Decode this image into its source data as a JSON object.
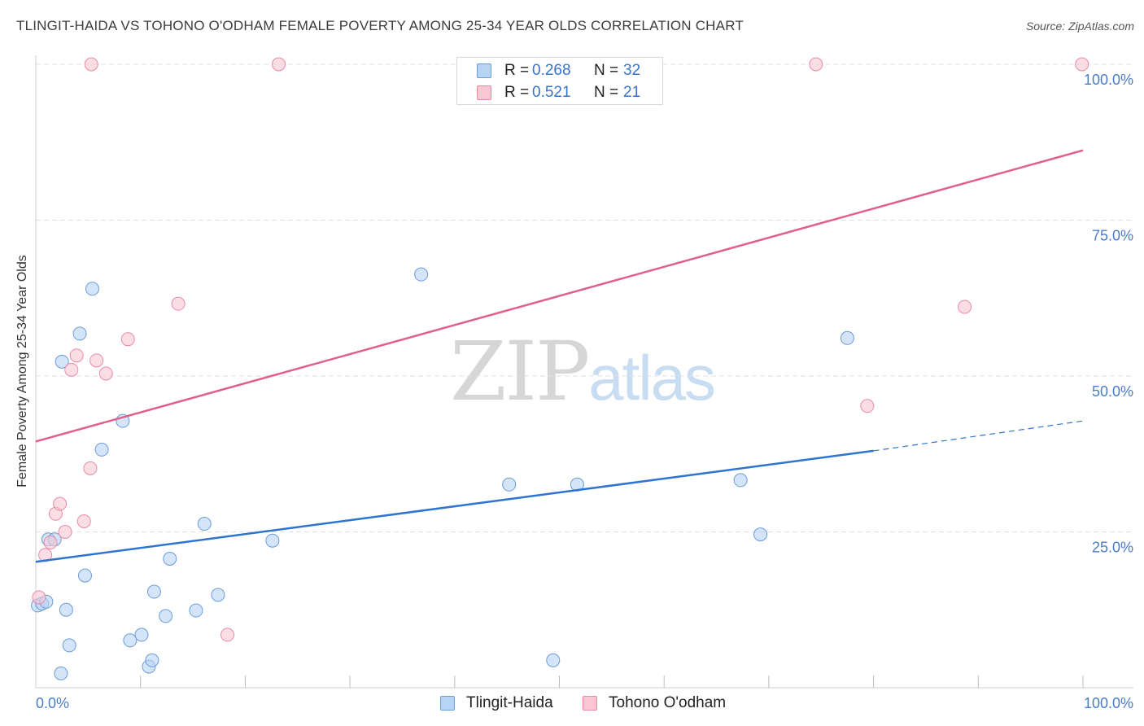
{
  "title": "TLINGIT-HAIDA VS TOHONO O'ODHAM FEMALE POVERTY AMONG 25-34 YEAR OLDS CORRELATION CHART",
  "source": "Source: ZipAtlas.com",
  "watermark": {
    "zip": "ZIP",
    "atlas": "atlas"
  },
  "legend": {
    "rows": [
      {
        "r_label": "R =",
        "r_value": "0.268",
        "n_label": "N =",
        "n_value": "32"
      },
      {
        "r_label": "R =",
        "r_value": "0.521",
        "n_label": "N =",
        "n_value": "21"
      }
    ]
  },
  "colors": {
    "blue_fill": "#b8d4f5",
    "blue_stroke": "#6b9bd8",
    "blue_line": "#2f74d0",
    "pink_fill": "#f9c6d4",
    "pink_stroke": "#e88aa6",
    "pink_line": "#e0608a",
    "axis_label": "#4a7cc9",
    "grid": "#e2e2e2"
  },
  "chart_data": {
    "type": "scatter",
    "title": "TLINGIT-HAIDA VS TOHONO O'ODHAM FEMALE POVERTY AMONG 25-34 YEAR OLDS CORRELATION CHART",
    "xlabel": "",
    "ylabel": "Female Poverty Among 25-34 Year Olds",
    "xlim": [
      0,
      100
    ],
    "ylim": [
      0,
      100
    ],
    "x_tick_labels": [
      "0.0%",
      "100.0%"
    ],
    "y_tick_labels": [
      "25.0%",
      "50.0%",
      "75.0%",
      "100.0%"
    ],
    "y_ticks": [
      25,
      50,
      75,
      100
    ],
    "grid": true,
    "series": [
      {
        "name": "Tlingit-Haida",
        "color": "blue",
        "points": [
          [
            0.2,
            13.2
          ],
          [
            0.6,
            13.5
          ],
          [
            1.0,
            13.8
          ],
          [
            1.2,
            23.8
          ],
          [
            1.8,
            23.8
          ],
          [
            2.4,
            2.3
          ],
          [
            2.5,
            52.3
          ],
          [
            2.9,
            12.5
          ],
          [
            3.2,
            6.8
          ],
          [
            4.2,
            56.8
          ],
          [
            4.7,
            18.0
          ],
          [
            5.4,
            64.0
          ],
          [
            6.3,
            38.2
          ],
          [
            8.3,
            42.8
          ],
          [
            9.0,
            7.6
          ],
          [
            10.1,
            8.5
          ],
          [
            10.8,
            3.4
          ],
          [
            11.1,
            4.4
          ],
          [
            11.3,
            15.4
          ],
          [
            12.4,
            11.5
          ],
          [
            12.8,
            20.7
          ],
          [
            15.3,
            12.4
          ],
          [
            16.1,
            26.3
          ],
          [
            17.4,
            14.9
          ],
          [
            22.6,
            23.6
          ],
          [
            36.8,
            66.3
          ],
          [
            45.2,
            32.6
          ],
          [
            49.4,
            4.4
          ],
          [
            51.7,
            32.6
          ],
          [
            67.3,
            33.3
          ],
          [
            69.2,
            24.6
          ],
          [
            77.5,
            56.1
          ]
        ],
        "trend": {
          "x0": 0,
          "y0": 20.2,
          "x1": 80,
          "y1": 38.0,
          "dash_to_x": 100,
          "dash_to_y": 42.8
        }
      },
      {
        "name": "Tohono O'odham",
        "color": "pink",
        "points": [
          [
            0.3,
            14.5
          ],
          [
            0.9,
            21.3
          ],
          [
            1.4,
            23.3
          ],
          [
            1.9,
            27.9
          ],
          [
            2.3,
            29.5
          ],
          [
            2.8,
            25.0
          ],
          [
            3.4,
            51.0
          ],
          [
            3.9,
            53.3
          ],
          [
            4.6,
            26.7
          ],
          [
            5.2,
            35.2
          ],
          [
            5.8,
            52.5
          ],
          [
            6.7,
            50.4
          ],
          [
            8.8,
            55.9
          ],
          [
            13.6,
            61.6
          ],
          [
            18.3,
            8.5
          ],
          [
            5.3,
            100
          ],
          [
            23.2,
            100
          ],
          [
            74.5,
            100
          ],
          [
            88.7,
            61.1
          ],
          [
            79.4,
            45.2
          ],
          [
            99.9,
            100
          ]
        ],
        "trend": {
          "x0": 0,
          "y0": 39.5,
          "x1": 100,
          "y1": 86.2
        }
      }
    ]
  },
  "bottom_legend": {
    "items": [
      {
        "label": "Tlingit-Haida",
        "color": "blue"
      },
      {
        "label": "Tohono O'odham",
        "color": "pink"
      }
    ]
  }
}
